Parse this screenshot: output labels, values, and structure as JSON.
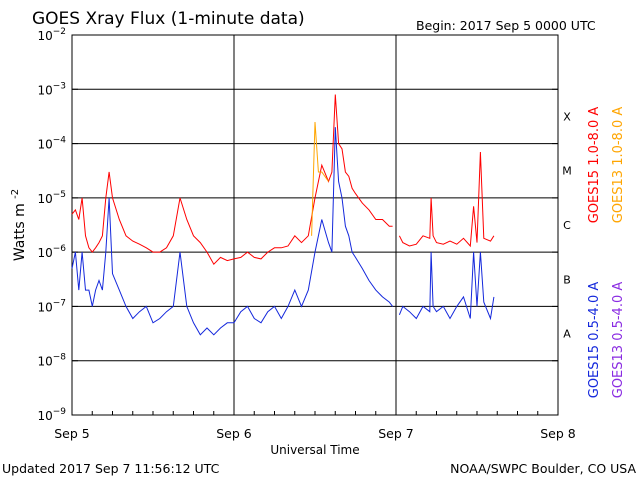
{
  "title": "GOES Xray Flux (1-minute data)",
  "begin": "Begin:  2017 Sep 5 0000 UTC",
  "updated": "Updated 2017 Sep  7 11:56:12 UTC",
  "credit": "NOAA/SWPC Boulder, CO USA",
  "colors": {
    "goes15_long": "#ff0000",
    "goes13_long": "#ffa500",
    "goes15_short": "#1428dc",
    "goes13_short": "#8a2be2",
    "grid": "#000000"
  },
  "chart_data": {
    "type": "line",
    "title": "GOES Xray Flux (1-minute data)",
    "xlabel": "Universal Time",
    "ylabel_main": "Watts m",
    "ylabel_sup": "-2",
    "yscale": "log",
    "ylim": [
      1e-09,
      0.01
    ],
    "xlim": [
      0,
      72
    ],
    "x_unit": "hours since 2017 Sep 5 0000 UTC",
    "x_ticks": [
      {
        "label": "Sep 5",
        "x": 0
      },
      {
        "label": "Sep 6",
        "x": 24
      },
      {
        "label": "Sep 7",
        "x": 48
      },
      {
        "label": "Sep 8",
        "x": 72
      }
    ],
    "y_ticks": [
      {
        "exp": -2
      },
      {
        "exp": -3
      },
      {
        "exp": -4
      },
      {
        "exp": -5
      },
      {
        "exp": -6
      },
      {
        "exp": -7
      },
      {
        "exp": -8
      },
      {
        "exp": -9
      }
    ],
    "flare_classes": [
      {
        "label": "X",
        "exp": -4
      },
      {
        "label": "M",
        "exp": -5
      },
      {
        "label": "C",
        "exp": -6
      },
      {
        "label": "B",
        "exp": -7
      },
      {
        "label": "A",
        "exp": -8
      }
    ],
    "grid_lines_exp": [
      -3,
      -4,
      -5,
      -6,
      -7,
      -8
    ],
    "legend": [
      {
        "name": "GOES15 1.0-8.0 A",
        "color_key": "goes15_long"
      },
      {
        "name": "GOES13 1.0-8.0 A",
        "color_key": "goes13_long"
      },
      {
        "name": "GOES15 0.5-4.0 A",
        "color_key": "goes15_short"
      },
      {
        "name": "GOES13 0.5-4.0 A",
        "color_key": "goes13_short"
      }
    ],
    "gaps": [
      [
        47.6,
        48.4
      ]
    ],
    "series": [
      {
        "name": "GOES15 1.0-8.0 A",
        "color_key": "goes15_long",
        "x": [
          0,
          0.5,
          1,
          1.5,
          2,
          2.5,
          3,
          3.5,
          4,
          4.5,
          5,
          5.5,
          6,
          7,
          8,
          9,
          10,
          11,
          12,
          13,
          14,
          15,
          16,
          17,
          18,
          19,
          20,
          21,
          22,
          23,
          24,
          25,
          26,
          27,
          28,
          29,
          30,
          31,
          32,
          33,
          34,
          35,
          36,
          37,
          38,
          38.5,
          39,
          39.5,
          40,
          40.5,
          41,
          41.5,
          42,
          43,
          44,
          45,
          46,
          47,
          47.5,
          48.5,
          49,
          50,
          51,
          52,
          53,
          53.2,
          53.5,
          54,
          55,
          56,
          57,
          58,
          59,
          59.5,
          60,
          60.5,
          61,
          62,
          62.5
        ],
        "y": [
          5e-06,
          6e-06,
          4e-06,
          1e-05,
          2e-06,
          1.2e-06,
          1e-06,
          1.2e-06,
          1.5e-06,
          2e-06,
          1e-05,
          3e-05,
          1e-05,
          4e-06,
          2e-06,
          1.6e-06,
          1.4e-06,
          1.2e-06,
          1e-06,
          1e-06,
          1.2e-06,
          2e-06,
          1e-05,
          4e-06,
          2e-06,
          1.5e-06,
          1e-06,
          6e-07,
          8e-07,
          7e-07,
          7.5e-07,
          8e-07,
          1e-06,
          8e-07,
          7.5e-07,
          1e-06,
          1.2e-06,
          1.2e-06,
          1.3e-06,
          2e-06,
          1.5e-06,
          2e-06,
          1e-05,
          4e-05,
          2e-05,
          3e-05,
          0.0008,
          0.0001,
          8e-05,
          3e-05,
          2.5e-05,
          1.5e-05,
          1.2e-05,
          8e-06,
          6e-06,
          4e-06,
          4e-06,
          3e-06,
          3e-06,
          2e-06,
          1.5e-06,
          1.3e-06,
          1.4e-06,
          2e-06,
          1.8e-06,
          1e-05,
          2e-06,
          1.5e-06,
          1.4e-06,
          1.6e-06,
          1.4e-06,
          1.8e-06,
          1.3e-06,
          7e-06,
          1.5e-06,
          7e-05,
          1.8e-06,
          1.6e-06,
          2e-06
        ]
      },
      {
        "name": "GOES13 1.0-8.0 A",
        "color_key": "goes13_long",
        "x": [
          35.5,
          36,
          36.5,
          37,
          38
        ],
        "y": [
          2e-06,
          0.00025,
          3e-05,
          3e-05,
          2e-05
        ]
      },
      {
        "name": "GOES15 0.5-4.0 A",
        "color_key": "goes15_short",
        "x": [
          0,
          0.5,
          1,
          1.5,
          2,
          2.5,
          3,
          3.5,
          4,
          4.5,
          5,
          5.5,
          6,
          7,
          8,
          9,
          10,
          11,
          12,
          13,
          14,
          15,
          16,
          17,
          18,
          19,
          20,
          21,
          22,
          23,
          24,
          25,
          26,
          27,
          28,
          29,
          30,
          31,
          32,
          33,
          34,
          35,
          36,
          37,
          38,
          38.5,
          39,
          39.5,
          40,
          40.5,
          41,
          41.5,
          42,
          43,
          44,
          45,
          46,
          47,
          47.5,
          48.5,
          49,
          50,
          51,
          52,
          53,
          53.2,
          53.5,
          54,
          55,
          56,
          57,
          58,
          59,
          59.5,
          60,
          60.5,
          61,
          62,
          62.5
        ],
        "y": [
          5e-07,
          1e-06,
          2e-07,
          1e-06,
          2e-07,
          2e-07,
          1e-07,
          2e-07,
          3e-07,
          2e-07,
          1e-06,
          1e-05,
          4e-07,
          2e-07,
          1e-07,
          6e-08,
          8e-08,
          1e-07,
          5e-08,
          6e-08,
          8e-08,
          1e-07,
          1e-06,
          1e-07,
          5e-08,
          3e-08,
          4e-08,
          3e-08,
          4e-08,
          5e-08,
          5e-08,
          8e-08,
          1e-07,
          6e-08,
          5e-08,
          8e-08,
          1e-07,
          6e-08,
          1e-07,
          2e-07,
          1e-07,
          2e-07,
          1e-06,
          4e-06,
          1.5e-06,
          1e-06,
          0.0002,
          2e-05,
          1e-05,
          3e-06,
          2e-06,
          1e-06,
          8e-07,
          5e-07,
          3e-07,
          2e-07,
          1.5e-07,
          1.2e-07,
          1e-07,
          7e-08,
          1e-07,
          8e-08,
          6e-08,
          1e-07,
          8e-08,
          1e-06,
          1e-07,
          8e-08,
          1e-07,
          6e-08,
          1e-07,
          1.5e-07,
          6e-08,
          1e-06,
          1e-07,
          1e-06,
          1.2e-07,
          6e-08,
          1.5e-07
        ]
      }
    ]
  }
}
